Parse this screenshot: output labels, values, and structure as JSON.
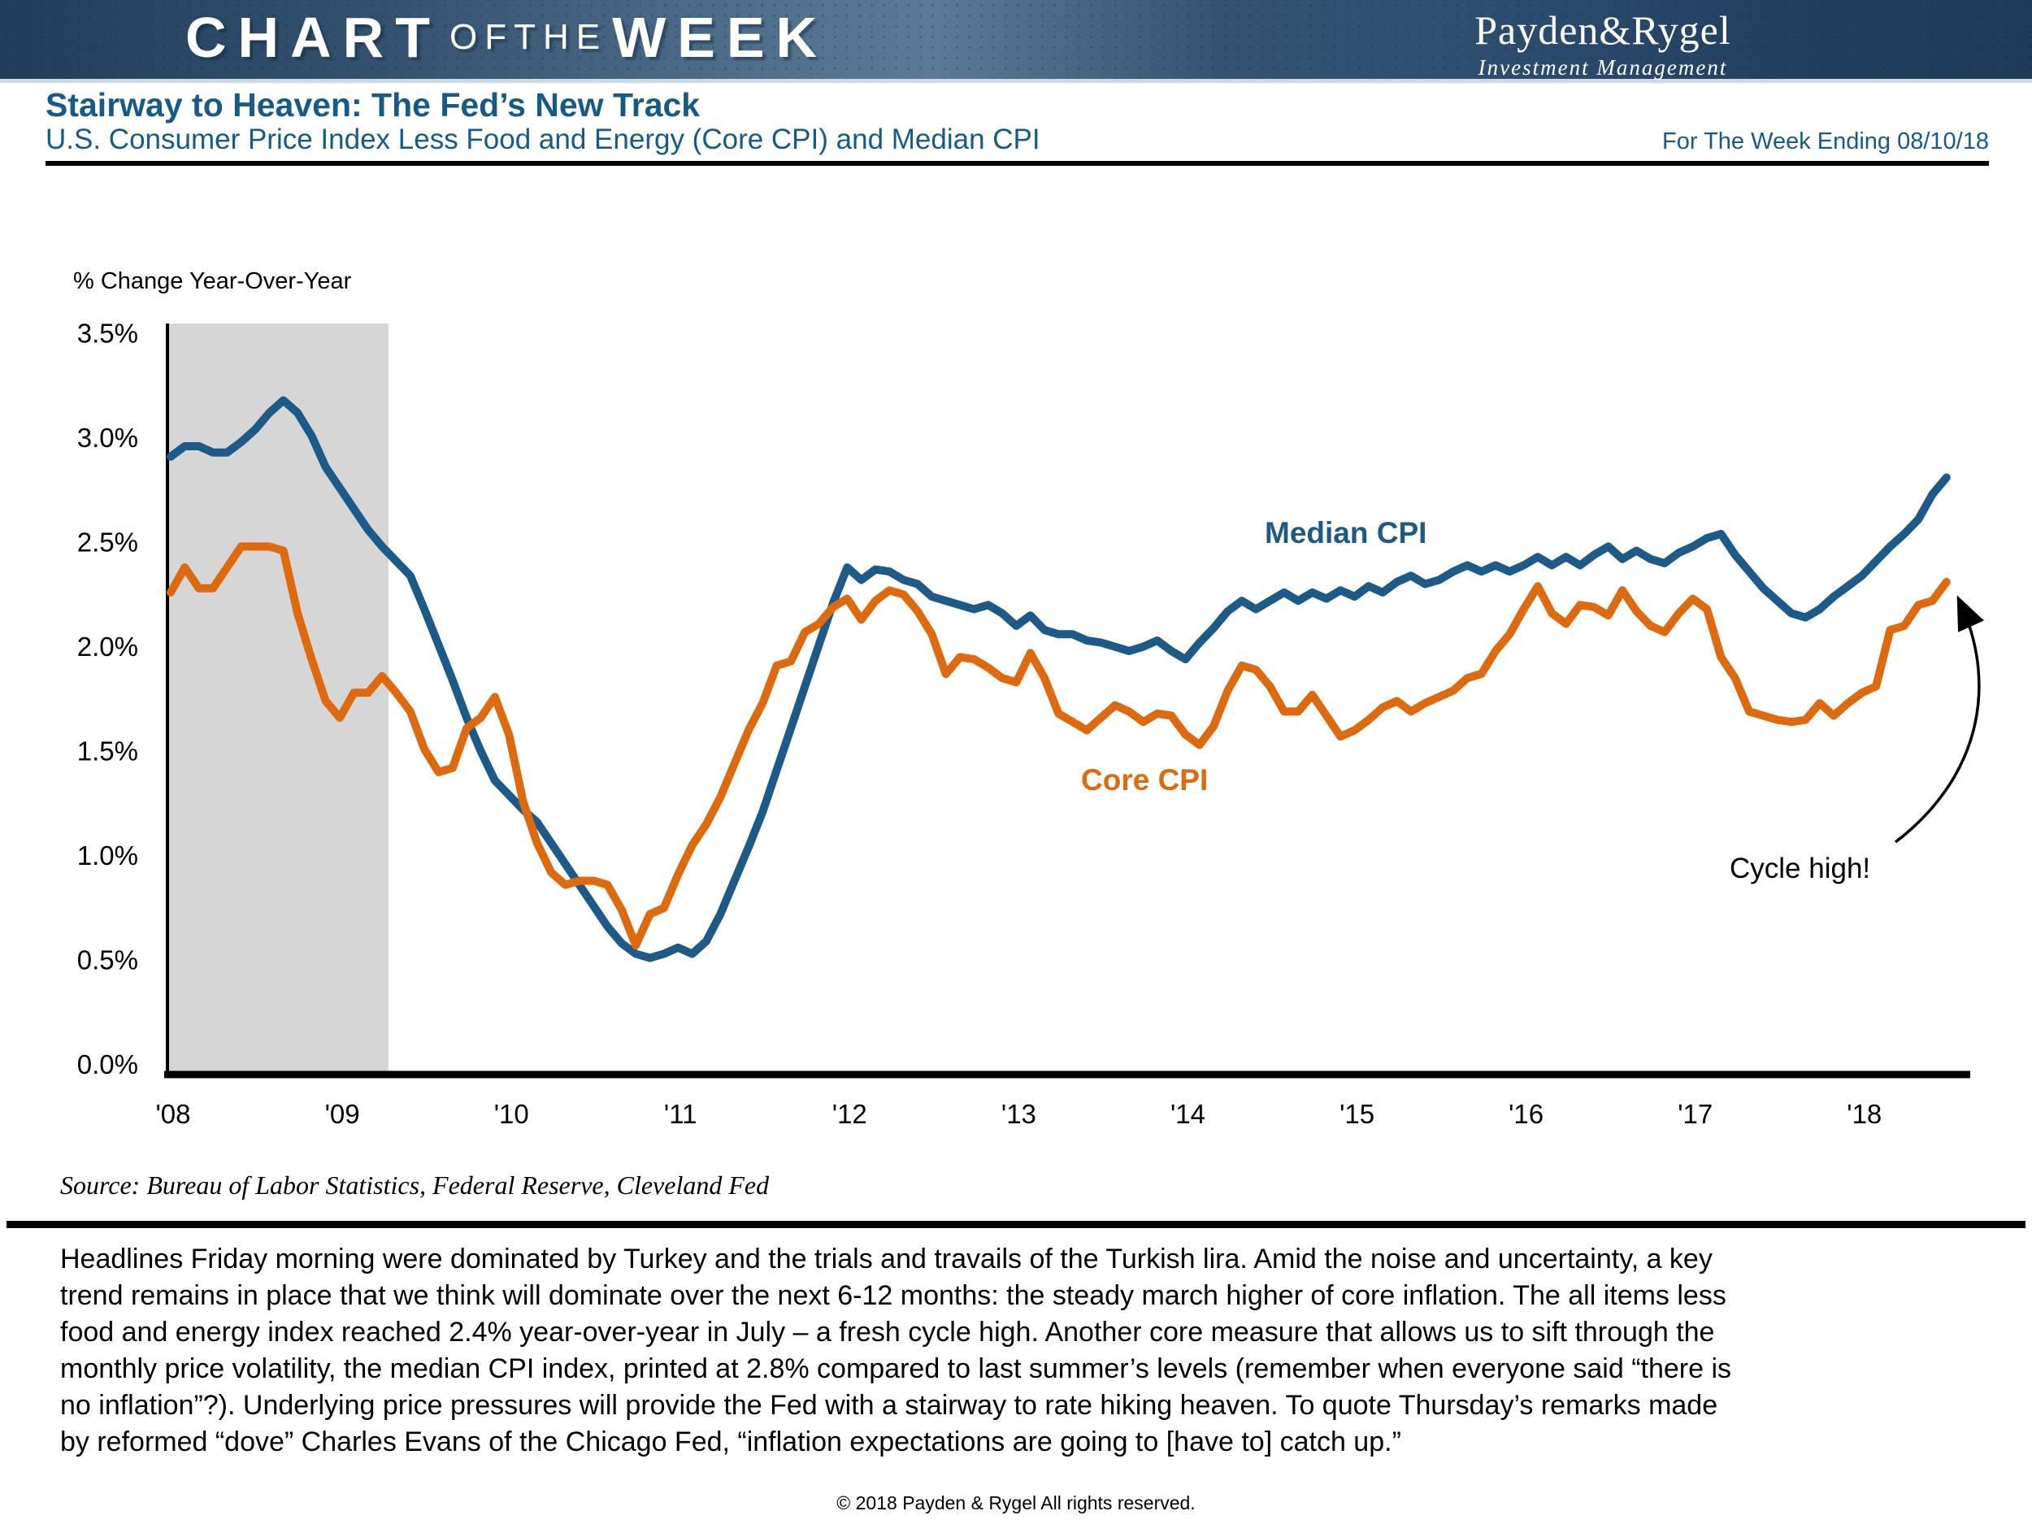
{
  "banner": {
    "title_part1": "CHART",
    "title_part2": "OFTHE",
    "title_part3": "WEEK",
    "logo_name": "Payden&Rygel",
    "logo_tagline": "Investment Management"
  },
  "header": {
    "title": "Stairway to Heaven: The Fed’s New Track",
    "subtitle": "U.S. Consumer Price Index Less Food and Energy (Core CPI) and Median CPI",
    "week_ending": "For The Week Ending 08/10/18"
  },
  "chart_data": {
    "type": "line",
    "units_label": "% Change Year-Over-Year",
    "x_start": "2008-01",
    "x_end": "2018-07",
    "frequency": "monthly",
    "ylim": [
      0.0,
      3.5
    ],
    "grid": false,
    "recession_band_months": [
      0,
      15.5
    ],
    "recession_band_color": "#d6d6d6",
    "yticks": [
      "3.5%",
      "3.0%",
      "2.5%",
      "2.0%",
      "1.5%",
      "1.0%",
      "0.5%",
      "0.0%"
    ],
    "xticks": [
      "'08",
      "'09",
      "'10",
      "'11",
      "'12",
      "'13",
      "'14",
      "'15",
      "'16",
      "'17",
      "'18"
    ],
    "annotation": "Cycle high!",
    "series": [
      {
        "name": "Median CPI",
        "color": "#1d5a87",
        "values": [
          2.95,
          3.0,
          3.0,
          2.97,
          2.97,
          3.02,
          3.08,
          3.16,
          3.22,
          3.16,
          3.05,
          2.9,
          2.8,
          2.7,
          2.6,
          2.52,
          2.45,
          2.38,
          2.22,
          2.05,
          1.88,
          1.7,
          1.54,
          1.4,
          1.33,
          1.26,
          1.2,
          1.1,
          1.0,
          0.9,
          0.8,
          0.7,
          0.62,
          0.57,
          0.55,
          0.57,
          0.6,
          0.57,
          0.63,
          0.76,
          0.92,
          1.08,
          1.25,
          1.45,
          1.65,
          1.85,
          2.05,
          2.25,
          2.42,
          2.36,
          2.41,
          2.4,
          2.36,
          2.34,
          2.28,
          2.26,
          2.24,
          2.22,
          2.24,
          2.2,
          2.14,
          2.19,
          2.12,
          2.1,
          2.1,
          2.07,
          2.06,
          2.04,
          2.02,
          2.04,
          2.07,
          2.02,
          1.98,
          2.06,
          2.13,
          2.21,
          2.26,
          2.22,
          2.26,
          2.3,
          2.26,
          2.3,
          2.27,
          2.31,
          2.28,
          2.33,
          2.3,
          2.35,
          2.38,
          2.34,
          2.36,
          2.4,
          2.43,
          2.4,
          2.43,
          2.4,
          2.43,
          2.47,
          2.43,
          2.47,
          2.43,
          2.48,
          2.52,
          2.46,
          2.5,
          2.46,
          2.44,
          2.49,
          2.52,
          2.56,
          2.58,
          2.48,
          2.4,
          2.32,
          2.26,
          2.2,
          2.18,
          2.22,
          2.28,
          2.33,
          2.38,
          2.45,
          2.52,
          2.58,
          2.65,
          2.77,
          2.85
        ]
      },
      {
        "name": "Core CPI",
        "color": "#de6a10",
        "values": [
          2.3,
          2.42,
          2.32,
          2.32,
          2.42,
          2.52,
          2.52,
          2.52,
          2.5,
          2.2,
          1.98,
          1.78,
          1.7,
          1.82,
          1.82,
          1.9,
          1.82,
          1.73,
          1.55,
          1.44,
          1.46,
          1.65,
          1.7,
          1.8,
          1.62,
          1.3,
          1.1,
          0.96,
          0.9,
          0.92,
          0.92,
          0.9,
          0.78,
          0.61,
          0.76,
          0.79,
          0.95,
          1.09,
          1.19,
          1.32,
          1.48,
          1.64,
          1.77,
          1.95,
          1.97,
          2.11,
          2.15,
          2.23,
          2.27,
          2.17,
          2.26,
          2.31,
          2.29,
          2.21,
          2.1,
          1.91,
          1.99,
          1.98,
          1.94,
          1.89,
          1.87,
          2.01,
          1.89,
          1.72,
          1.68,
          1.64,
          1.7,
          1.76,
          1.73,
          1.68,
          1.72,
          1.71,
          1.62,
          1.57,
          1.66,
          1.83,
          1.95,
          1.93,
          1.85,
          1.73,
          1.73,
          1.81,
          1.71,
          1.61,
          1.64,
          1.69,
          1.75,
          1.78,
          1.73,
          1.77,
          1.8,
          1.83,
          1.89,
          1.91,
          2.02,
          2.1,
          2.22,
          2.33,
          2.2,
          2.15,
          2.24,
          2.23,
          2.19,
          2.31,
          2.21,
          2.14,
          2.11,
          2.2,
          2.27,
          2.22,
          1.99,
          1.89,
          1.73,
          1.71,
          1.69,
          1.68,
          1.69,
          1.77,
          1.71,
          1.77,
          1.82,
          1.85,
          2.12,
          2.14,
          2.24,
          2.26,
          2.35
        ]
      }
    ]
  },
  "footer": {
    "source": "Source: Bureau of Labor Statistics, Federal Reserve, Cleveland Fed",
    "commentary_lines": [
      "Headlines Friday morning were dominated by Turkey and the trials and travails of the Turkish lira. Amid the noise and uncertainty, a key",
      "trend remains in place that we think will dominate over the next 6-12 months: the steady march higher of core inflation. The all items less",
      "food and energy index reached 2.4% year-over-year in July – a fresh cycle high. Another core measure that allows us to sift through the",
      "monthly price volatility, the median CPI index, printed at 2.8% compared to last summer’s levels (remember when everyone said “there is",
      "no inflation”?). Underlying price pressures will provide the Fed with a stairway to rate hiking heaven. To quote Thursday’s remarks made",
      "by reformed “dove” Charles Evans of the Chicago Fed, “inflation expectations are going to [have to] catch up.”"
    ],
    "copyright": "© 2018 Payden & Rygel All rights reserved."
  }
}
